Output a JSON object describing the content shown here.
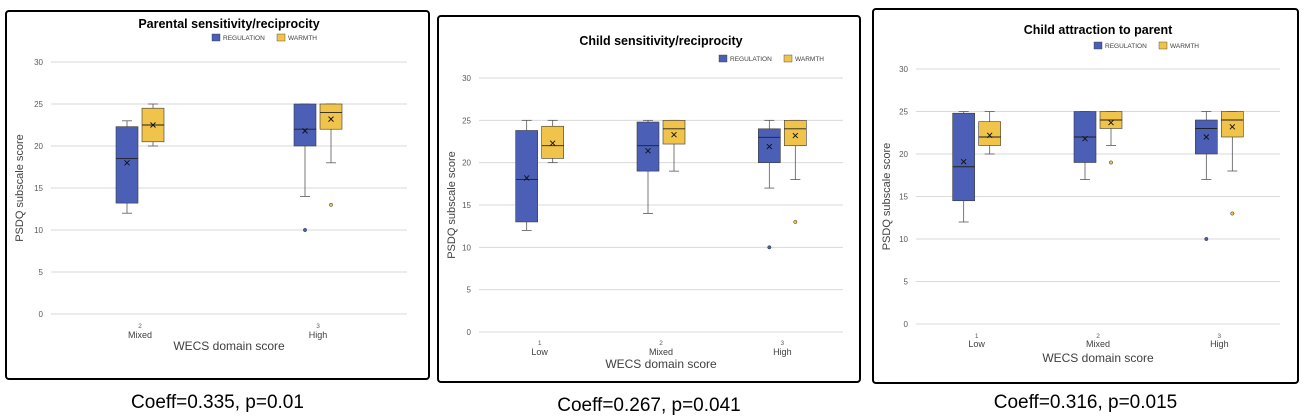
{
  "colors": {
    "regulation": "#4a5fb5",
    "warmth": "#f0c34a",
    "grid": "#d9d9d9",
    "text": "#404040"
  },
  "chart_data": [
    {
      "type": "box",
      "title": "Parental sensitivity/reciprocity",
      "xlabel": "WECS domain score",
      "ylabel": "PSDQ subscale score",
      "ylim": [
        0,
        30
      ],
      "yticks": [
        0,
        5,
        10,
        15,
        20,
        25,
        30
      ],
      "legend": "top-center",
      "categories": [
        {
          "num": "2",
          "label": "Mixed"
        },
        {
          "num": "3",
          "label": "High"
        }
      ],
      "series": [
        {
          "name": "REGULATION",
          "color": "#4a5fb5",
          "boxes": [
            {
              "min": 12,
              "q1": 13.2,
              "median": 18.5,
              "q3": 22.3,
              "max": 23,
              "mean": 18,
              "outliers": []
            },
            {
              "min": 14,
              "q1": 20,
              "median": 22,
              "q3": 25,
              "max": 25,
              "mean": 21.8,
              "outliers": [
                10
              ]
            }
          ]
        },
        {
          "name": "WARMTH",
          "color": "#f0c34a",
          "boxes": [
            {
              "min": 20,
              "q1": 20.5,
              "median": 22.5,
              "q3": 24.5,
              "max": 25,
              "mean": 22.5,
              "outliers": []
            },
            {
              "min": 18,
              "q1": 22,
              "median": 24,
              "q3": 25,
              "max": 25,
              "mean": 23.2,
              "outliers": [
                13
              ]
            }
          ]
        }
      ],
      "caption": "Coeff=0.335, p=0.01"
    },
    {
      "type": "box",
      "title": "Child sensitivity/reciprocity",
      "xlabel": "WECS domain score",
      "ylabel": "PSDQ subscale score",
      "ylim": [
        0,
        30
      ],
      "yticks": [
        0,
        5,
        10,
        15,
        20,
        25,
        30
      ],
      "legend": "top-right",
      "categories": [
        {
          "num": "1",
          "label": "Low"
        },
        {
          "num": "2",
          "label": "Mixed"
        },
        {
          "num": "3",
          "label": "High"
        }
      ],
      "series": [
        {
          "name": "REGULATION",
          "color": "#4a5fb5",
          "boxes": [
            {
              "min": 12,
              "q1": 13,
              "median": 18,
              "q3": 23.8,
              "max": 25,
              "mean": 18.2,
              "outliers": []
            },
            {
              "min": 14,
              "q1": 19,
              "median": 22,
              "q3": 24.8,
              "max": 25,
              "mean": 21.4,
              "outliers": []
            },
            {
              "min": 17,
              "q1": 20,
              "median": 23,
              "q3": 24,
              "max": 25,
              "mean": 21.9,
              "outliers": [
                10
              ]
            }
          ]
        },
        {
          "name": "WARMTH",
          "color": "#f0c34a",
          "boxes": [
            {
              "min": 20,
              "q1": 20.5,
              "median": 22,
              "q3": 24.3,
              "max": 25,
              "mean": 22.3,
              "outliers": []
            },
            {
              "min": 19,
              "q1": 22.2,
              "median": 24,
              "q3": 25,
              "max": 25,
              "mean": 23.3,
              "outliers": []
            },
            {
              "min": 18,
              "q1": 22,
              "median": 24,
              "q3": 25,
              "max": 25,
              "mean": 23.2,
              "outliers": [
                13
              ]
            }
          ]
        }
      ],
      "caption": "Coeff=0.267, p=0.041"
    },
    {
      "type": "box",
      "title": "Child attraction to parent",
      "xlabel": "WECS domain score",
      "ylabel": "PSDQ subscale score",
      "ylim": [
        0,
        30
      ],
      "yticks": [
        0,
        5,
        10,
        15,
        20,
        25,
        30
      ],
      "legend": "top-center",
      "categories": [
        {
          "num": "1",
          "label": "Low"
        },
        {
          "num": "2",
          "label": "Mixed"
        },
        {
          "num": "3",
          "label": "High"
        }
      ],
      "series": [
        {
          "name": "REGULATION",
          "color": "#4a5fb5",
          "boxes": [
            {
              "min": 12,
              "q1": 14.5,
              "median": 18.5,
              "q3": 24.8,
              "max": 25,
              "mean": 19.1,
              "outliers": []
            },
            {
              "min": 17,
              "q1": 19,
              "median": 22,
              "q3": 25,
              "max": 25,
              "mean": 21.8,
              "outliers": []
            },
            {
              "min": 17,
              "q1": 20,
              "median": 23,
              "q3": 24,
              "max": 25,
              "mean": 22,
              "outliers": [
                10
              ]
            }
          ]
        },
        {
          "name": "WARMTH",
          "color": "#f0c34a",
          "boxes": [
            {
              "min": 20,
              "q1": 21,
              "median": 22,
              "q3": 23.8,
              "max": 25,
              "mean": 22.2,
              "outliers": []
            },
            {
              "min": 21,
              "q1": 23,
              "median": 24,
              "q3": 25,
              "max": 25,
              "mean": 23.7,
              "outliers": [
                19
              ]
            },
            {
              "min": 18,
              "q1": 22,
              "median": 24,
              "q3": 25,
              "max": 25,
              "mean": 23.2,
              "outliers": [
                13
              ]
            }
          ]
        }
      ],
      "caption": "Coeff=0.316, p=0.015"
    }
  ]
}
